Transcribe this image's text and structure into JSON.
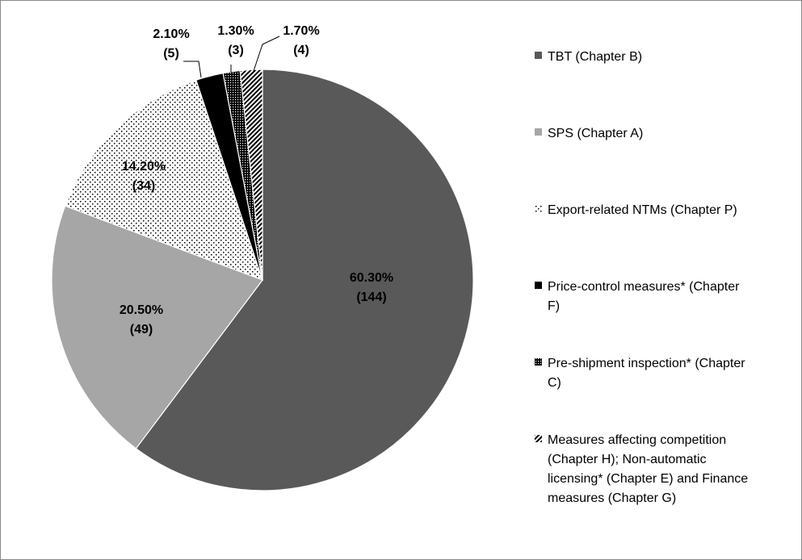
{
  "chart_data": {
    "type": "pie",
    "title": "",
    "slices": [
      {
        "name": "TBT (Chapter B)",
        "percent_label": "60.30%",
        "count_label": "(144)",
        "value": 60.3,
        "count": 144,
        "fill": "#595959",
        "pattern": "solid"
      },
      {
        "name": "SPS (Chapter A)",
        "percent_label": "20.50%",
        "count_label": "(49)",
        "value": 20.5,
        "count": 49,
        "fill": "#a6a6a6",
        "pattern": "solid"
      },
      {
        "name": "Export-related NTMs (Chapter P)",
        "percent_label": "14.20%",
        "count_label": "(34)",
        "value": 14.2,
        "count": 34,
        "fill": "#ffffff",
        "pattern": "sparse-dots"
      },
      {
        "name": "Price-control measures* (Chapter F)",
        "percent_label": "2.10%",
        "count_label": "(5)",
        "value": 2.1,
        "count": 5,
        "fill": "#000000",
        "pattern": "solid"
      },
      {
        "name": "Pre-shipment inspection* (Chapter C)",
        "percent_label": "1.30%",
        "count_label": "(3)",
        "value": 1.3,
        "count": 3,
        "fill": "#000000",
        "pattern": "dense-dots"
      },
      {
        "name": "Measures affecting competition (Chapter H); Non-automatic licensing* (Chapter E) and Finance measures (Chapter G)",
        "percent_label": "1.70%",
        "count_label": "(4)",
        "value": 1.7,
        "count": 4,
        "fill": "#ffffff",
        "pattern": "diagonal-stripes"
      }
    ],
    "legend": {
      "placement": "right",
      "entries": [
        [
          "TBT (Chapter B)"
        ],
        [
          "SPS (Chapter A)"
        ],
        [
          "Export-related NTMs (Chapter P)"
        ],
        [
          "Price-control measures* (Chapter",
          "F)"
        ],
        [
          "Pre-shipment inspection* (Chapter",
          "C)"
        ],
        [
          "Measures affecting competition",
          "(Chapter H); Non-automatic",
          "licensing* (Chapter E) and Finance",
          "measures (Chapter G)"
        ]
      ]
    }
  }
}
